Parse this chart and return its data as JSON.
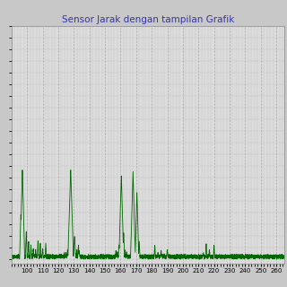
{
  "title": "Sensor Jarak dengan tampilan Grafik",
  "title_color": "#3333aa",
  "title_fontsize": 7.5,
  "bg_color": "#c8c8c8",
  "plot_bg_color": "#dcdcdc",
  "line_color": "#006600",
  "line_width": 0.6,
  "xlim": [
    90,
    265
  ],
  "ylim": [
    -2,
    100
  ],
  "grid_color": "#999999",
  "grid_alpha": 0.8,
  "tick_fontsize": 5.0,
  "peak_scale": 38
}
